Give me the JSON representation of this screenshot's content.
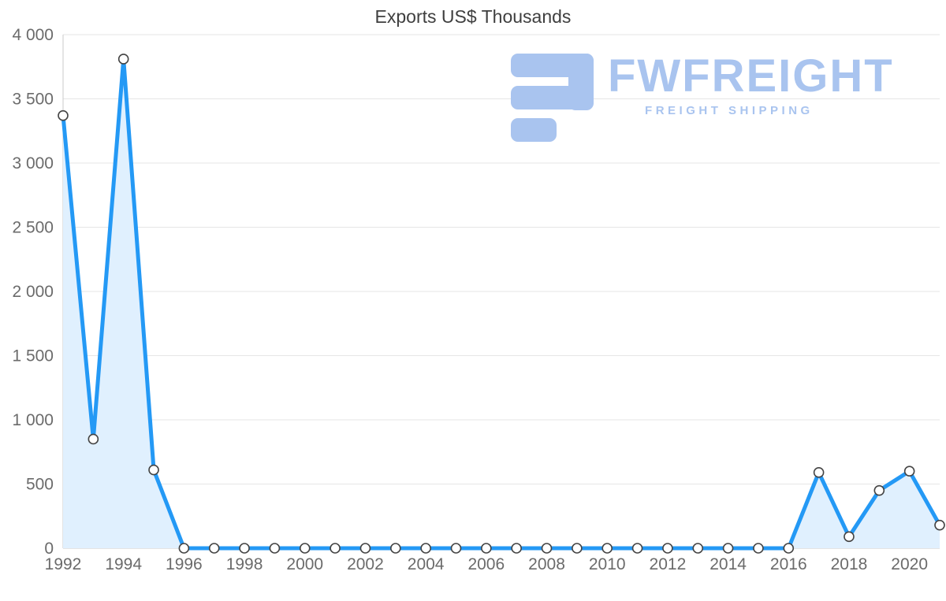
{
  "chart_data": {
    "type": "area",
    "title": "Exports US$ Thousands",
    "xlabel": "",
    "ylabel": "",
    "x": [
      1992,
      1993,
      1994,
      1995,
      1996,
      1997,
      1998,
      1999,
      2000,
      2001,
      2002,
      2003,
      2004,
      2005,
      2006,
      2007,
      2008,
      2009,
      2010,
      2011,
      2012,
      2013,
      2014,
      2015,
      2016,
      2017,
      2018,
      2019,
      2020,
      2021
    ],
    "values": [
      3370,
      850,
      3810,
      610,
      0,
      0,
      0,
      0,
      0,
      0,
      0,
      0,
      0,
      0,
      0,
      0,
      0,
      0,
      0,
      0,
      0,
      0,
      0,
      0,
      0,
      590,
      90,
      450,
      600,
      180
    ],
    "ylim": [
      0,
      4000
    ],
    "yticks": [
      {
        "value": 0,
        "label": "0"
      },
      {
        "value": 500,
        "label": "500"
      },
      {
        "value": 1000,
        "label": "1 000"
      },
      {
        "value": 1500,
        "label": "1 500"
      },
      {
        "value": 2000,
        "label": "2 000"
      },
      {
        "value": 2500,
        "label": "2 500"
      },
      {
        "value": 3000,
        "label": "3 000"
      },
      {
        "value": 3500,
        "label": "3 500"
      },
      {
        "value": 4000,
        "label": "4 000"
      }
    ],
    "xtick_labels": [
      "1992",
      "1994",
      "1996",
      "1998",
      "2000",
      "2002",
      "2004",
      "2006",
      "2008",
      "2010",
      "2012",
      "2014",
      "2016",
      "2018",
      "2020"
    ],
    "grid": true,
    "legend": false,
    "colors": {
      "line": "#2499f5",
      "area": "#e0f0fe",
      "marker_fill": "#ffffff",
      "marker_stroke": "#444444",
      "grid": "#e6e6e6",
      "axis": "#c9c9c9",
      "tick_text": "#6b6b6b"
    }
  },
  "logo": {
    "brand": "FWFREIGHT",
    "tagline": "FREIGHT SHIPPING",
    "color": "#a9c4ef"
  }
}
